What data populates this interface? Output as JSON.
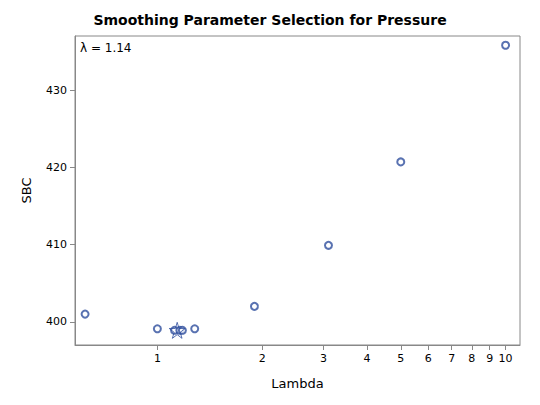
{
  "chart_data": {
    "type": "scatter",
    "title": "Smoothing Parameter Selection for Pressure",
    "xlabel": "Lambda",
    "ylabel": "SBC",
    "annotations": [
      "λ = 1.14"
    ],
    "log": "x",
    "grid": false,
    "xlim": [
      0.58,
      11
    ],
    "xticks": [
      1,
      2,
      3,
      4,
      5,
      6,
      7,
      8,
      9,
      10
    ],
    "ylim": [
      397,
      437
    ],
    "yticks": [
      400,
      410,
      420,
      430
    ],
    "series": [
      {
        "type": "scatter",
        "marker": "circle",
        "color": "#2f4f9e",
        "x": [
          0.62,
          1,
          1.12,
          1.16,
          1.18,
          1.28,
          1.9,
          3.1,
          5,
          10
        ],
        "values": [
          401,
          399.1,
          398.9,
          398.9,
          398.9,
          399.1,
          402,
          409.9,
          420.7,
          435.8
        ]
      },
      {
        "type": "scatter",
        "marker": "star",
        "color": "#2f4f9e",
        "x": [
          1.14
        ],
        "values": [
          398.9
        ]
      }
    ]
  }
}
